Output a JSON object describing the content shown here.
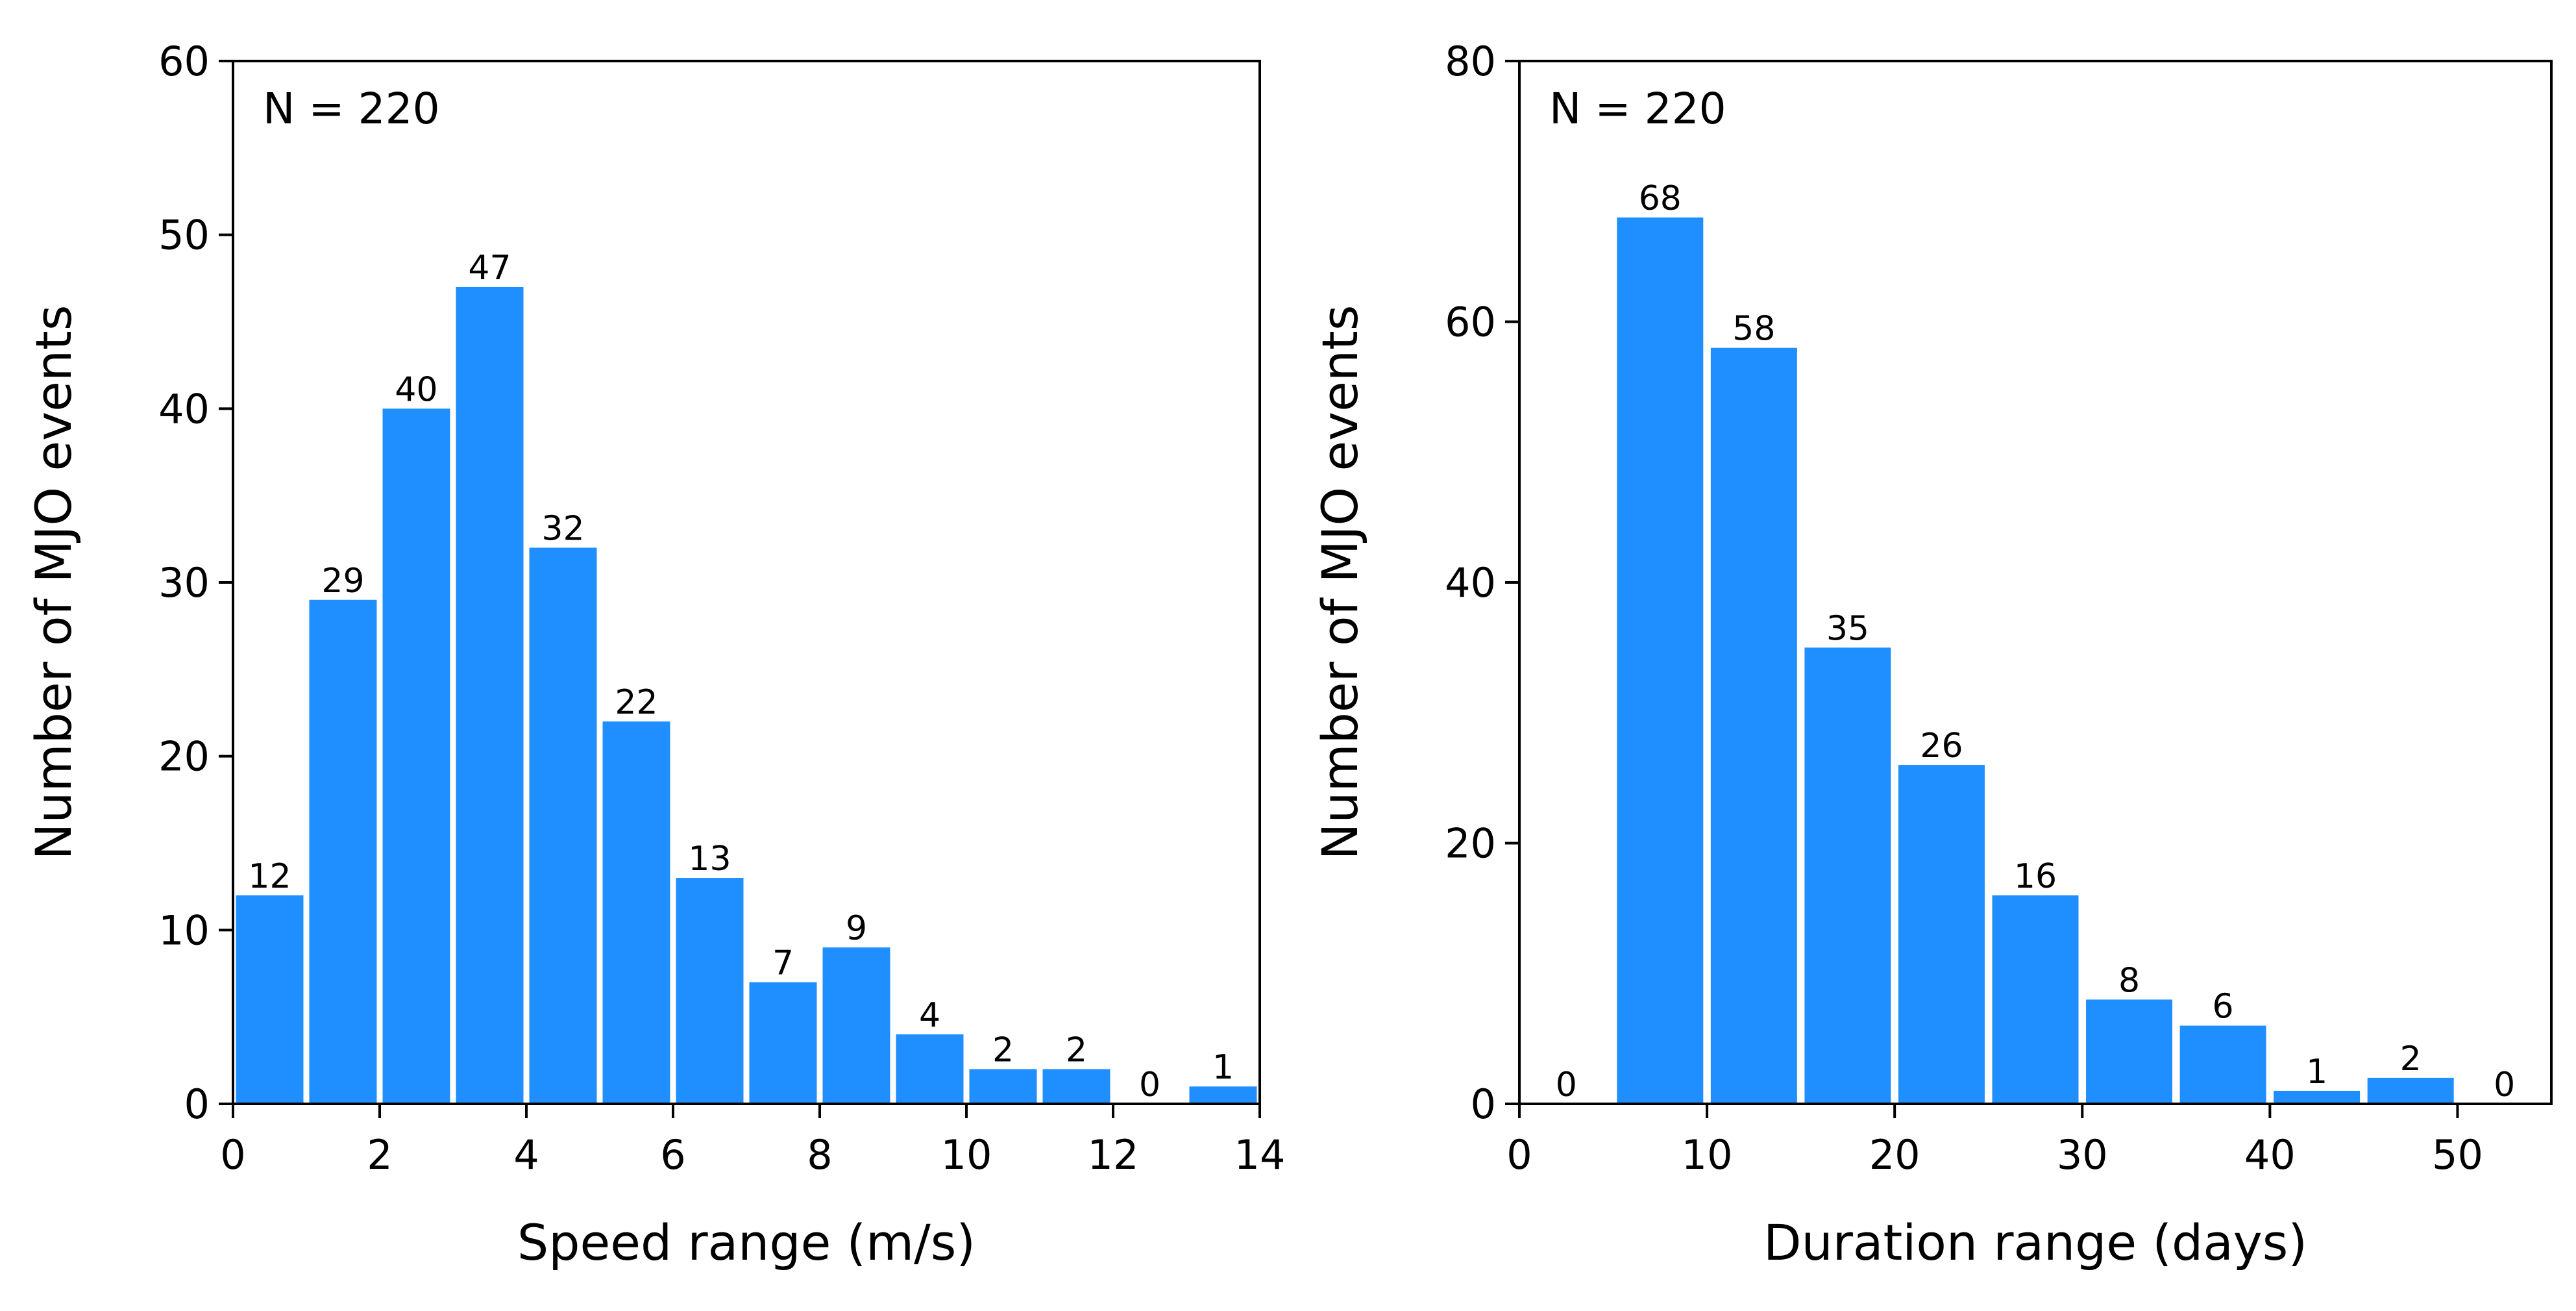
{
  "chart_data": [
    {
      "type": "bar",
      "title": "",
      "annotation": "N = 220",
      "xlabel": "Speed range (m/s)",
      "ylabel": "Number of MJO events",
      "bin_edges": [
        0,
        1,
        2,
        3,
        4,
        5,
        6,
        7,
        8,
        9,
        10,
        11,
        12,
        13,
        14
      ],
      "values": [
        12,
        29,
        40,
        47,
        32,
        22,
        13,
        7,
        9,
        4,
        2,
        2,
        0,
        1
      ],
      "xlim": [
        0,
        14
      ],
      "ylim": [
        0,
        60
      ],
      "xticks": [
        "0",
        "2",
        "4",
        "6",
        "8",
        "10",
        "12",
        "14"
      ],
      "xtick_values": [
        0,
        2,
        4,
        6,
        8,
        10,
        12,
        14
      ],
      "yticks": [
        "0",
        "10",
        "20",
        "30",
        "40",
        "50",
        "60"
      ],
      "ytick_values": [
        0,
        10,
        20,
        30,
        40,
        50,
        60
      ],
      "bar_color": "#1f8fff",
      "grid": false
    },
    {
      "type": "bar",
      "title": "",
      "annotation": "N = 220",
      "xlabel": "Duration range (days)",
      "ylabel": "Number of MJO events",
      "bin_edges": [
        0,
        5,
        10,
        15,
        20,
        25,
        30,
        35,
        40,
        45,
        50,
        55
      ],
      "values": [
        0,
        68,
        58,
        35,
        26,
        16,
        8,
        6,
        1,
        2,
        0
      ],
      "xlim": [
        0,
        55
      ],
      "ylim": [
        0,
        80
      ],
      "xticks": [
        "0",
        "10",
        "20",
        "30",
        "40",
        "50"
      ],
      "xtick_values": [
        0,
        10,
        20,
        30,
        40,
        50
      ],
      "yticks": [
        "0",
        "20",
        "40",
        "60",
        "80"
      ],
      "ytick_values": [
        0,
        20,
        40,
        60,
        80
      ],
      "bar_color": "#1f8fff",
      "grid": false
    }
  ]
}
